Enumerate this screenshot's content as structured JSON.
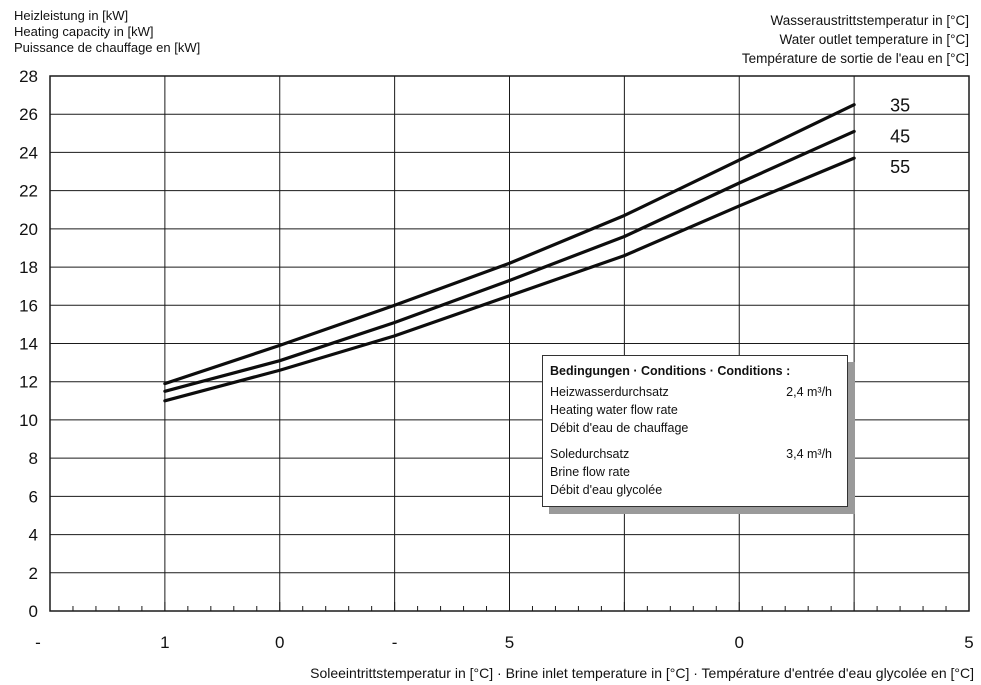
{
  "header": {
    "ylabel_lines": [
      "Heizleistung in [kW]",
      "Heating capacity in [kW]",
      "Puissance de chauffage en [kW]"
    ],
    "legend_title_lines": [
      "Wasseraustrittstemperatur in [°C]",
      "Water outlet temperature in [°C]",
      "Température de sortie de l'eau en [°C]"
    ]
  },
  "xlabel": "Soleeintrittstemperatur in [°C] · Brine inlet temperature in [°C] · Température d'entrée d'eau glycolée en [°C]",
  "conditions": {
    "title": "Bedingungen · Conditions · Conditions :",
    "water_flow": {
      "labels": [
        "Heizwasserdurchsatz",
        "Heating water flow rate",
        "Débit d'eau de chauffage"
      ],
      "value": "2,4 m³/h"
    },
    "brine_flow": {
      "labels": [
        "Soledurchsatz",
        "Brine flow rate",
        "Débit d'eau glycolée"
      ],
      "value": "3,4 m³/h"
    }
  },
  "chart_data": {
    "type": "line",
    "xlim": [
      -20,
      20
    ],
    "ylim": [
      0,
      28
    ],
    "yticks": [
      0,
      2,
      4,
      6,
      8,
      10,
      12,
      14,
      16,
      18,
      20,
      22,
      24,
      26,
      28
    ],
    "xtick_labels": [
      {
        "x": -20,
        "label": "-"
      },
      {
        "x": -15,
        "label": "1"
      },
      {
        "x": -10,
        "label": "0"
      },
      {
        "x": -5,
        "label": "-"
      },
      {
        "x": 0,
        "label": "5"
      },
      {
        "x": 10,
        "label": "0"
      },
      {
        "x": 20,
        "label": "5"
      }
    ],
    "grid": true,
    "series": [
      {
        "name": "35",
        "x": [
          -15,
          -10,
          -5,
          0,
          5,
          10,
          15
        ],
        "y": [
          11.9,
          13.9,
          16.0,
          18.2,
          20.7,
          23.6,
          26.5
        ]
      },
      {
        "name": "45",
        "x": [
          -15,
          -10,
          -5,
          0,
          5,
          10,
          15
        ],
        "y": [
          11.5,
          13.1,
          15.1,
          17.3,
          19.6,
          22.4,
          25.1
        ]
      },
      {
        "name": "55",
        "x": [
          -15,
          -10,
          -5,
          0,
          5,
          10,
          15
        ],
        "y": [
          11.0,
          12.6,
          14.4,
          16.5,
          18.6,
          21.2,
          23.7
        ]
      }
    ]
  }
}
